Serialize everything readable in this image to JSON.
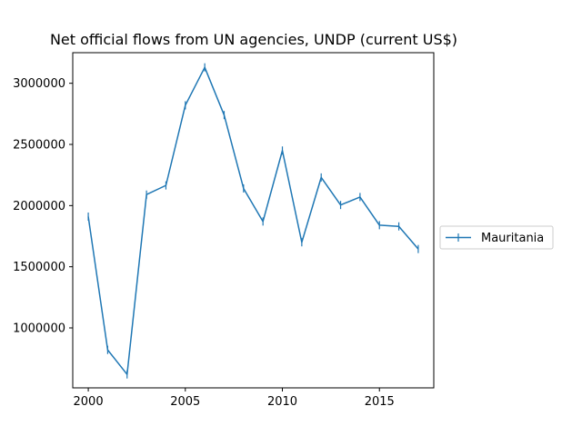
{
  "chart_data": {
    "type": "line",
    "title": "Net official flows from UN agencies, UNDP (current US$)",
    "xlabel": "",
    "ylabel": "",
    "x": [
      2000,
      2001,
      2002,
      2003,
      2004,
      2005,
      2006,
      2007,
      2008,
      2009,
      2010,
      2011,
      2012,
      2013,
      2014,
      2015,
      2016,
      2017
    ],
    "series": [
      {
        "name": "Mauritania",
        "color": "#1f77b4",
        "marker": "vline",
        "values": [
          1910000,
          820000,
          620000,
          2090000,
          2165000,
          2820000,
          3130000,
          2740000,
          2140000,
          1870000,
          2450000,
          1700000,
          2230000,
          2005000,
          2070000,
          1840000,
          1830000,
          1645000
        ]
      }
    ],
    "xlim": [
      1999.2,
      2017.8
    ],
    "ylim": [
      510000,
      3250000
    ],
    "xticks": [
      2000,
      2005,
      2010,
      2015
    ],
    "xtick_labels": [
      "2000",
      "2005",
      "2010",
      "2015"
    ],
    "yticks": [
      1000000,
      1500000,
      2000000,
      2500000,
      3000000
    ],
    "ytick_labels": [
      "1000000",
      "1500000",
      "2000000",
      "2500000",
      "3000000"
    ],
    "grid": false,
    "legend_position": "outside-right"
  }
}
